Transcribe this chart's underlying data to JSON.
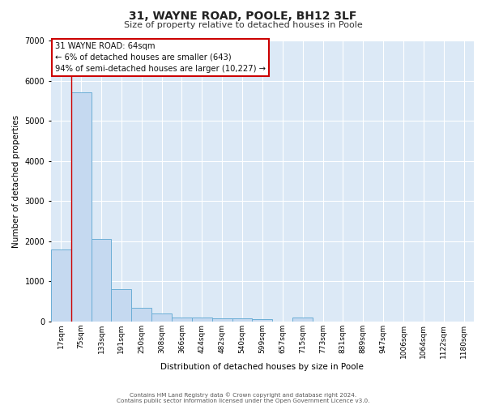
{
  "title": "31, WAYNE ROAD, POOLE, BH12 3LF",
  "subtitle": "Size of property relative to detached houses in Poole",
  "xlabel": "Distribution of detached houses by size in Poole",
  "ylabel": "Number of detached properties",
  "categories": [
    "17sqm",
    "75sqm",
    "133sqm",
    "191sqm",
    "250sqm",
    "308sqm",
    "366sqm",
    "424sqm",
    "482sqm",
    "540sqm",
    "599sqm",
    "657sqm",
    "715sqm",
    "773sqm",
    "831sqm",
    "889sqm",
    "947sqm",
    "1006sqm",
    "1064sqm",
    "1122sqm",
    "1180sqm"
  ],
  "values": [
    1800,
    5700,
    2050,
    800,
    340,
    200,
    110,
    95,
    85,
    75,
    55,
    0,
    95,
    0,
    0,
    0,
    0,
    0,
    0,
    0,
    0
  ],
  "bar_color": "#c5d9f0",
  "bar_edge_color": "#6baed6",
  "background_color": "#dce9f6",
  "grid_color": "#ffffff",
  "ylim": [
    0,
    7000
  ],
  "yticks": [
    0,
    1000,
    2000,
    3000,
    4000,
    5000,
    6000,
    7000
  ],
  "red_line_x": 0.5,
  "annotation_line1": "31 WAYNE ROAD: 64sqm",
  "annotation_line2": "← 6% of detached houses are smaller (643)",
  "annotation_line3": "94% of semi-detached houses are larger (10,227) →",
  "annotation_box_color": "#ffffff",
  "annotation_border_color": "#cc0000",
  "footer_line1": "Contains HM Land Registry data © Crown copyright and database right 2024.",
  "footer_line2": "Contains public sector information licensed under the Open Government Licence v3.0."
}
